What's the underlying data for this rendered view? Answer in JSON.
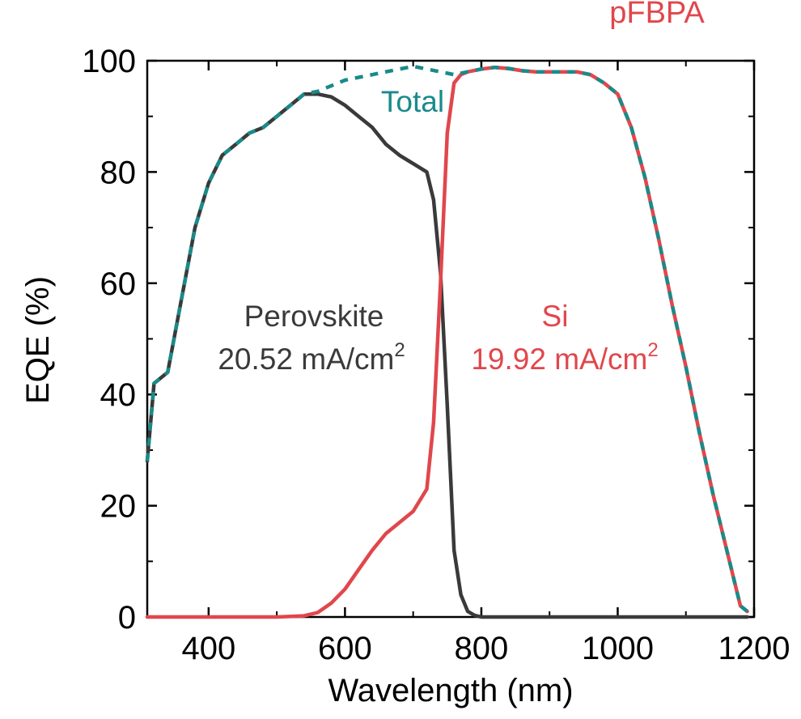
{
  "chart_data": {
    "type": "line",
    "title": "pFBPA",
    "xlabel": "Wavelength (nm)",
    "ylabel": "EQE (%)",
    "xlim": [
      310,
      1200
    ],
    "ylim": [
      0,
      100
    ],
    "x_ticks": [
      400,
      600,
      800,
      1000,
      1200
    ],
    "y_ticks": [
      0,
      20,
      40,
      60,
      80,
      100
    ],
    "x_tick_labels": [
      "400",
      "600",
      "800",
      "1000",
      "1200"
    ],
    "y_tick_labels": [
      "0",
      "20",
      "40",
      "60",
      "80",
      "100"
    ],
    "colors": {
      "perovskite": "#3a3a3a",
      "si": "#e0474c",
      "total": "#1a8a8a",
      "title": "#e0474c"
    },
    "series": [
      {
        "name": "Perovskite",
        "style": "solid",
        "x": [
          310,
          320,
          330,
          340,
          360,
          380,
          400,
          420,
          440,
          460,
          480,
          500,
          520,
          540,
          560,
          580,
          600,
          620,
          640,
          660,
          680,
          700,
          720,
          730,
          740,
          750,
          760,
          770,
          780,
          790,
          800,
          850,
          900,
          1000,
          1100,
          1190
        ],
        "values": [
          28,
          42,
          43,
          44,
          57,
          70,
          78,
          83,
          85,
          87,
          88,
          90,
          92,
          94,
          94,
          93.5,
          92,
          90,
          88,
          85,
          83,
          81.5,
          80,
          75,
          62,
          38,
          12,
          4,
          1,
          0.3,
          0,
          0,
          0,
          0,
          0,
          0
        ]
      },
      {
        "name": "Si",
        "style": "solid",
        "x": [
          310,
          500,
          540,
          560,
          580,
          600,
          620,
          640,
          660,
          680,
          700,
          720,
          730,
          740,
          750,
          760,
          770,
          780,
          800,
          820,
          840,
          860,
          880,
          900,
          920,
          940,
          960,
          980,
          1000,
          1020,
          1040,
          1060,
          1080,
          1100,
          1120,
          1140,
          1160,
          1180,
          1190
        ],
        "values": [
          0,
          0,
          0.2,
          0.8,
          2.5,
          5,
          8.5,
          12,
          15,
          17,
          19,
          23,
          35,
          60,
          87,
          96,
          97.5,
          98,
          98.5,
          98.8,
          98.6,
          98.2,
          98,
          98,
          98,
          98,
          97.5,
          96,
          94,
          88,
          79,
          68,
          56,
          45,
          33,
          22,
          12,
          2,
          1
        ]
      },
      {
        "name": "Total",
        "style": "dashed",
        "x": [
          310,
          320,
          330,
          340,
          360,
          380,
          400,
          420,
          440,
          460,
          480,
          500,
          520,
          540,
          560,
          580,
          600,
          620,
          640,
          660,
          680,
          700,
          720,
          740,
          760,
          780,
          800,
          820,
          840,
          860,
          880,
          900,
          920,
          940,
          960,
          980,
          1000,
          1020,
          1040,
          1060,
          1080,
          1100,
          1120,
          1140,
          1160,
          1180,
          1190
        ],
        "values": [
          28,
          42,
          43,
          44,
          57,
          70,
          78,
          83,
          85,
          87,
          88,
          90,
          92,
          94,
          94.5,
          95.5,
          96.5,
          97,
          97.5,
          98,
          98.5,
          99,
          98.5,
          98,
          97.5,
          98,
          98.5,
          98.8,
          98.6,
          98.2,
          98,
          98,
          98,
          98,
          97.5,
          96,
          94,
          88,
          79,
          68,
          56,
          45,
          33,
          22,
          12,
          2,
          1
        ]
      }
    ],
    "annotations": {
      "total_label": "Total",
      "perovskite_label": "Perovskite",
      "perovskite_jsc": "20.52 mA/cm",
      "si_label": "Si",
      "si_jsc": "19.92 mA/cm",
      "superscript": "2"
    }
  }
}
